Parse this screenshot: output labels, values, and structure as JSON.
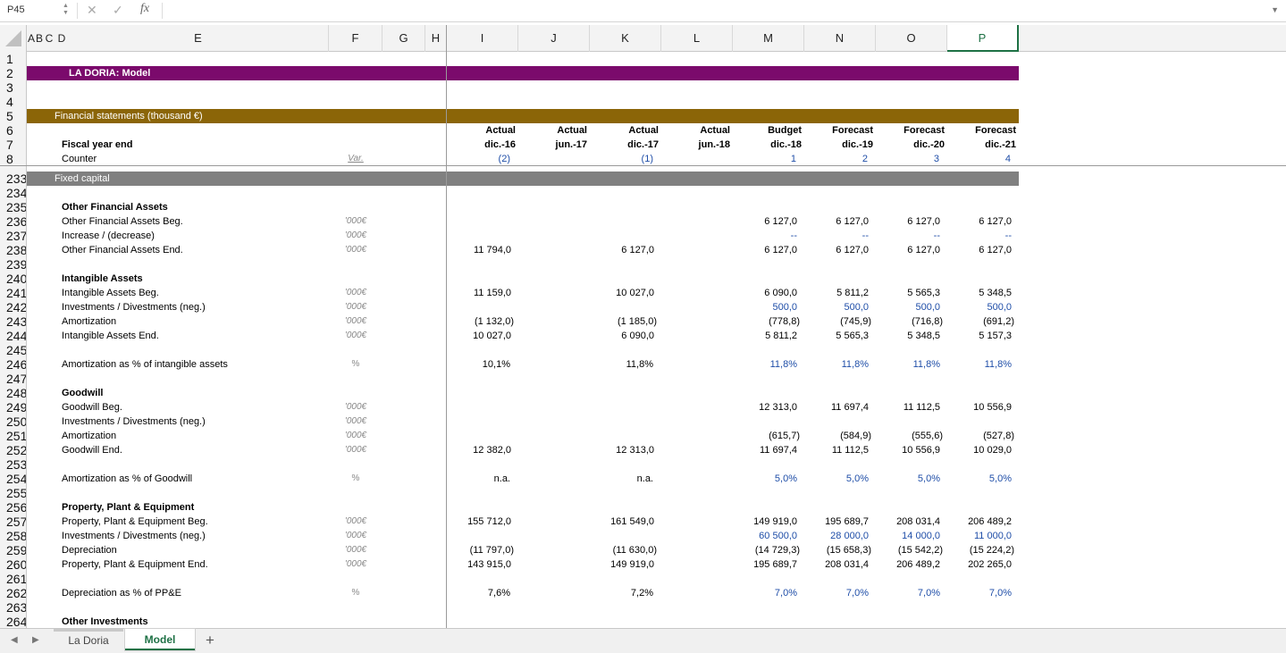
{
  "formula_bar": {
    "name_box": "P45",
    "cancel_icon": "✕",
    "confirm_icon": "✓",
    "fx": "fx",
    "formula": ""
  },
  "columns": [
    "A",
    "B",
    "C",
    "D",
    "E",
    "F",
    "G",
    "H",
    "I",
    "J",
    "K",
    "L",
    "M",
    "N",
    "O",
    "P"
  ],
  "selected_column": "P",
  "title_band": {
    "text": "LA DORIA: Model",
    "color": "#7b0a6c"
  },
  "section_band": {
    "text": "Financial statements (thousand €)",
    "color": "#8b6508"
  },
  "fixed_capital_band": {
    "text": "Fixed capital",
    "color": "#808080"
  },
  "header_rows": {
    "type": [
      "Actual",
      "Actual",
      "Actual",
      "Actual",
      "Budget",
      "Forecast",
      "Forecast",
      "Forecast"
    ],
    "period": [
      "dic.-16",
      "jun.-17",
      "dic.-17",
      "jun.-18",
      "dic.-18",
      "dic.-19",
      "dic.-20",
      "dic.-21"
    ],
    "counter": [
      "(2)",
      "",
      "(1)",
      "",
      "1",
      "2",
      "3",
      "4"
    ],
    "fiscal_label": "Fiscal year end",
    "counter_label": "Counter",
    "var_label": "Var."
  },
  "rows": [
    {
      "n": "233",
      "band": "fixed"
    },
    {
      "n": "234"
    },
    {
      "n": "235",
      "label": "Other Financial Assets",
      "bold": true
    },
    {
      "n": "236",
      "label": "Other Financial Assets Beg.",
      "unit": "'000€",
      "vals": [
        "",
        "",
        "",
        "",
        "6 127,0",
        "6 127,0",
        "6 127,0",
        "6 127,0"
      ]
    },
    {
      "n": "237",
      "label": "Increase / (decrease)",
      "unit": "'000€",
      "vals": [
        "",
        "",
        "",
        "",
        "--",
        "--",
        "--",
        "--"
      ],
      "blue_fc": true
    },
    {
      "n": "238",
      "label": "Other Financial Assets End.",
      "unit": "'000€",
      "vals": [
        "11 794,0",
        "",
        "6 127,0",
        "",
        "6 127,0",
        "6 127,0",
        "6 127,0",
        "6 127,0"
      ]
    },
    {
      "n": "239"
    },
    {
      "n": "240",
      "label": "Intangible Assets",
      "bold": true
    },
    {
      "n": "241",
      "label": "Intangible Assets Beg.",
      "unit": "'000€",
      "vals": [
        "11 159,0",
        "",
        "10 027,0",
        "",
        "6 090,0",
        "5 811,2",
        "5 565,3",
        "5 348,5"
      ]
    },
    {
      "n": "242",
      "label": "Investments / Divestments (neg.)",
      "unit": "'000€",
      "vals": [
        "",
        "",
        "",
        "",
        "500,0",
        "500,0",
        "500,0",
        "500,0"
      ],
      "blue_fc": true
    },
    {
      "n": "243",
      "label": "Amortization",
      "unit": "'000€",
      "vals": [
        "(1 132,0)",
        "",
        "(1 185,0)",
        "",
        "(778,8)",
        "(745,9)",
        "(716,8)",
        "(691,2)"
      ]
    },
    {
      "n": "244",
      "label": "Intangible Assets End.",
      "unit": "'000€",
      "vals": [
        "10 027,0",
        "",
        "6 090,0",
        "",
        "5 811,2",
        "5 565,3",
        "5 348,5",
        "5 157,3"
      ]
    },
    {
      "n": "245"
    },
    {
      "n": "246",
      "label": "Amortization as % of intangible assets",
      "unit": "%",
      "vals": [
        "10,1%",
        "",
        "11,8%",
        "",
        "11,8%",
        "11,8%",
        "11,8%",
        "11,8%"
      ],
      "blue_fc": true
    },
    {
      "n": "247"
    },
    {
      "n": "248",
      "label": "Goodwill",
      "bold": true
    },
    {
      "n": "249",
      "label": "Goodwill Beg.",
      "unit": "'000€",
      "vals": [
        "",
        "",
        "",
        "",
        "12 313,0",
        "11 697,4",
        "11 112,5",
        "10 556,9"
      ]
    },
    {
      "n": "250",
      "label": "Investments / Divestments (neg.)",
      "unit": "'000€",
      "vals": [
        "",
        "",
        "",
        "",
        "",
        "",
        "",
        ""
      ]
    },
    {
      "n": "251",
      "label": "Amortization",
      "unit": "'000€",
      "vals": [
        "",
        "",
        "",
        "",
        "(615,7)",
        "(584,9)",
        "(555,6)",
        "(527,8)"
      ]
    },
    {
      "n": "252",
      "label": "Goodwill End.",
      "unit": "'000€",
      "vals": [
        "12 382,0",
        "",
        "12 313,0",
        "",
        "11 697,4",
        "11 112,5",
        "10 556,9",
        "10 029,0"
      ]
    },
    {
      "n": "253"
    },
    {
      "n": "254",
      "label": "Amortization as % of Goodwill",
      "unit": "%",
      "vals": [
        "n.a.",
        "",
        "n.a.",
        "",
        "5,0%",
        "5,0%",
        "5,0%",
        "5,0%"
      ],
      "blue_fc": true
    },
    {
      "n": "255"
    },
    {
      "n": "256",
      "label": "Property, Plant & Equipment",
      "bold": true
    },
    {
      "n": "257",
      "label": "Property, Plant & Equipment Beg.",
      "unit": "'000€",
      "vals": [
        "155 712,0",
        "",
        "161 549,0",
        "",
        "149 919,0",
        "195 689,7",
        "208 031,4",
        "206 489,2"
      ]
    },
    {
      "n": "258",
      "label": "Investments / Divestments (neg.)",
      "unit": "'000€",
      "vals": [
        "",
        "",
        "",
        "",
        "60 500,0",
        "28 000,0",
        "14 000,0",
        "11 000,0"
      ],
      "blue_fc": true
    },
    {
      "n": "259",
      "label": "Depreciation",
      "unit": "'000€",
      "vals": [
        "(11 797,0)",
        "",
        "(11 630,0)",
        "",
        "(14 729,3)",
        "(15 658,3)",
        "(15 542,2)",
        "(15 224,2)"
      ]
    },
    {
      "n": "260",
      "label": "Property, Plant & Equipment End.",
      "unit": "'000€",
      "vals": [
        "143 915,0",
        "",
        "149 919,0",
        "",
        "195 689,7",
        "208 031,4",
        "206 489,2",
        "202 265,0"
      ]
    },
    {
      "n": "261"
    },
    {
      "n": "262",
      "label": "Depreciation as % of PP&E",
      "unit": "%",
      "vals": [
        "7,6%",
        "",
        "7,2%",
        "",
        "7,0%",
        "7,0%",
        "7,0%",
        "7,0%"
      ],
      "blue_fc": true
    },
    {
      "n": "263"
    },
    {
      "n": "264",
      "label": "Other Investments",
      "bold": true
    }
  ],
  "top_row_numbers": [
    "1",
    "2",
    "3",
    "4",
    "5",
    "6",
    "7",
    "8"
  ],
  "tabs": {
    "sheet1": "La Doria",
    "sheet2": "Model",
    "add": "+",
    "prev": "◀",
    "next": "▶"
  }
}
